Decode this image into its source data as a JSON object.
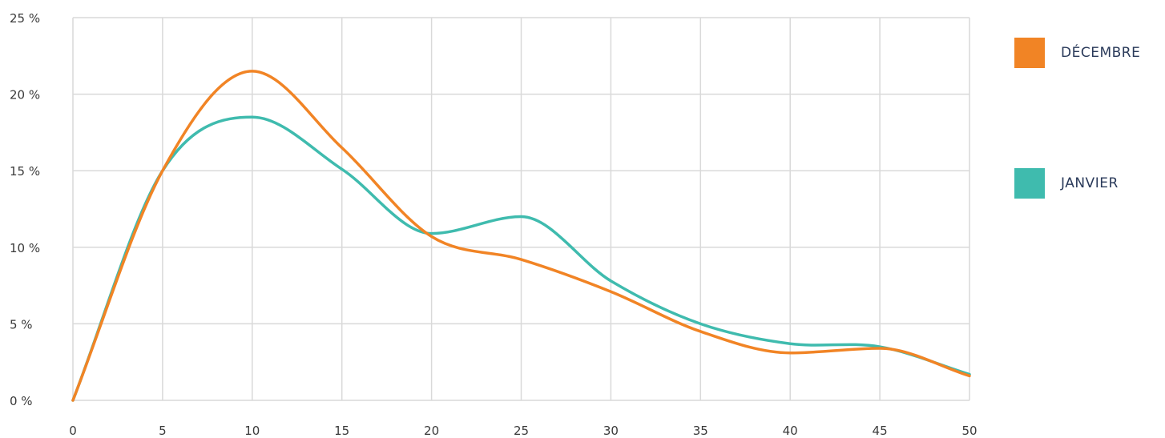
{
  "chart_data": {
    "type": "line",
    "title": "",
    "xlabel": "",
    "ylabel": "",
    "xlim": [
      0,
      50
    ],
    "ylim": [
      0,
      25
    ],
    "x_ticks": [
      0,
      5,
      10,
      15,
      20,
      25,
      30,
      35,
      40,
      45,
      50
    ],
    "x_tick_labels": [
      "0",
      "5",
      "10",
      "15",
      "20",
      "25",
      "30",
      "35",
      "40",
      "45",
      "50"
    ],
    "y_ticks": [
      0,
      5,
      10,
      15,
      20,
      25
    ],
    "y_tick_labels": [
      "0 %",
      "5 %",
      "10 %",
      "15 %",
      "20 %",
      "25 %"
    ],
    "grid": true,
    "legend_position": "right",
    "x": [
      0,
      5,
      10,
      15,
      20,
      25,
      30,
      35,
      40,
      45,
      50
    ],
    "series": [
      {
        "name": "DÉCEMBRE",
        "color": "#f18425",
        "values": [
          0,
          15,
          21.5,
          16.5,
          10.7,
          9.2,
          7.1,
          4.5,
          3.1,
          3.4,
          1.6
        ]
      },
      {
        "name": "JANVIER",
        "color": "#3fbbae",
        "values": [
          0,
          15,
          18.5,
          15.1,
          10.9,
          12.0,
          7.8,
          5.0,
          3.7,
          3.5,
          1.7
        ]
      }
    ]
  }
}
